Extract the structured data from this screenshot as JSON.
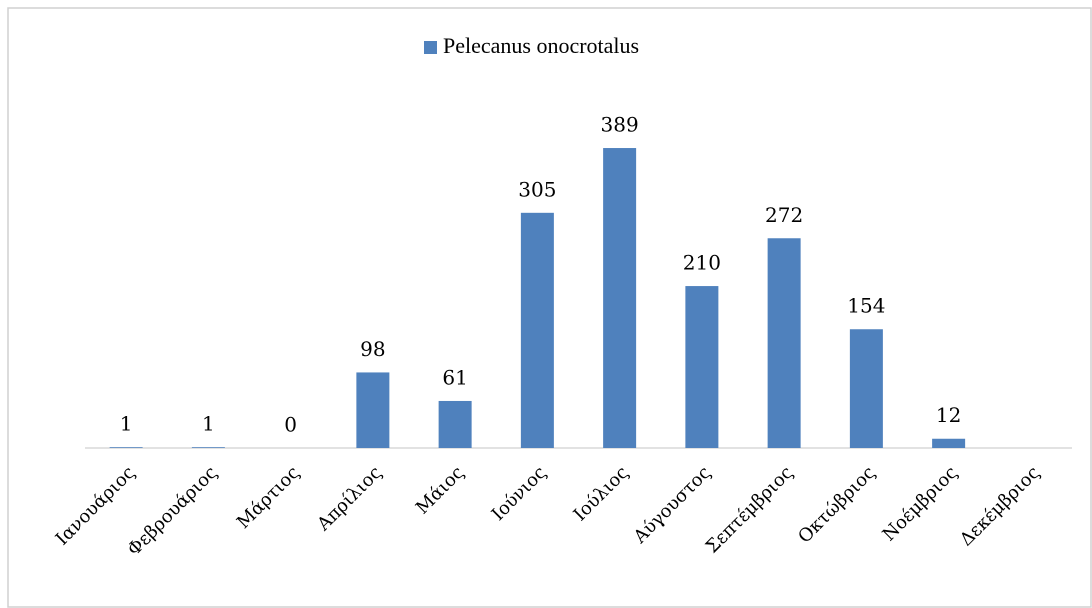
{
  "chart_data": {
    "type": "bar",
    "categories": [
      "Ιανουάριος",
      "Φεβρουάριος",
      "Μάρτιος",
      "Απρίλιος",
      "Μάιος",
      "Ιούνιος",
      "Ιούλιος",
      "Αύγουστος",
      "Σεπτέμβριος",
      "Οκτώβριος",
      "Νοέμβριος",
      "Δεκέμβριος"
    ],
    "series": [
      {
        "name": "Pelecanus onocrotalus",
        "color": "#4f81bd",
        "values": [
          1,
          1,
          0,
          98,
          61,
          305,
          389,
          210,
          272,
          154,
          12,
          null
        ]
      }
    ],
    "ylim": [
      0,
      450
    ],
    "legend": "top"
  }
}
